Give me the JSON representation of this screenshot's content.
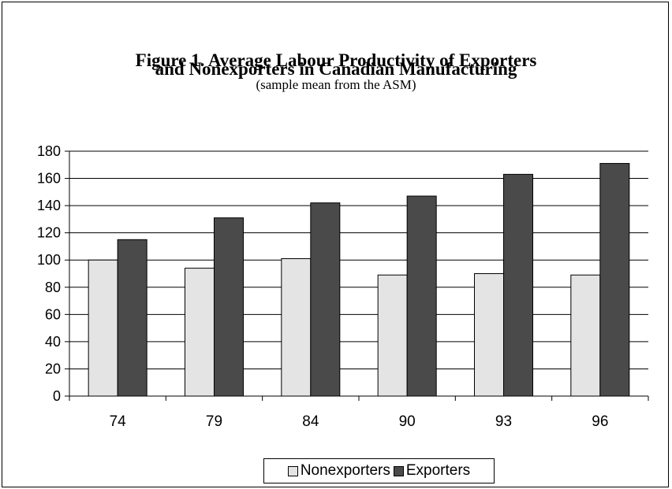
{
  "chart_data": {
    "type": "bar",
    "title_line1": "Figure 1.   Average Labour Productivity of Exporters",
    "title_line2": "and Nonexporters in Canadian Manufacturing",
    "subtitle": "(sample mean from the ASM)",
    "xlabel": "",
    "ylabel": "",
    "categories": [
      "74",
      "79",
      "84",
      "90",
      "93",
      "96"
    ],
    "series": [
      {
        "name": "Nonexporters",
        "color": "#e4e4e4",
        "values": [
          100,
          94,
          101,
          89,
          90,
          89
        ]
      },
      {
        "name": "Exporters",
        "color": "#4a4a4a",
        "values": [
          115,
          131,
          142,
          147,
          163,
          171
        ]
      }
    ],
    "ylim": [
      0,
      180
    ],
    "yticks": [
      0,
      20,
      40,
      60,
      80,
      100,
      120,
      140,
      160,
      180
    ],
    "grid": true,
    "legend_position": "bottom"
  }
}
